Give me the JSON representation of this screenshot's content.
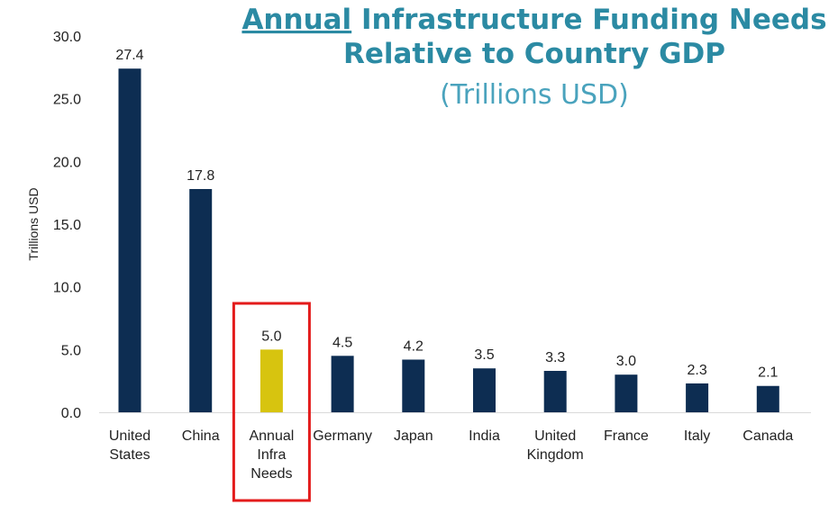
{
  "chart_data": {
    "type": "bar",
    "title": {
      "emphasis": "Annual",
      "line1_rest": " Infrastructure Funding Needs",
      "line2": "Relative to Country GDP",
      "subtitle": "(Trillions USD)"
    },
    "ylabel": "Trillions USD",
    "xlabel": "",
    "ylim": [
      0,
      30
    ],
    "yticks": [
      "0.0",
      "5.0",
      "10.0",
      "15.0",
      "20.0",
      "25.0",
      "30.0"
    ],
    "categories": [
      [
        "United",
        "States"
      ],
      [
        "China"
      ],
      [
        "Annual",
        "Infra",
        "Needs"
      ],
      [
        "Germany"
      ],
      [
        "Japan"
      ],
      [
        "India"
      ],
      [
        "United",
        "Kingdom"
      ],
      [
        "France"
      ],
      [
        "Italy"
      ],
      [
        "Canada"
      ]
    ],
    "values": [
      27.4,
      17.8,
      5.0,
      4.5,
      4.2,
      3.5,
      3.3,
      3.0,
      2.3,
      2.1
    ],
    "value_labels": [
      "27.4",
      "17.8",
      "5.0",
      "4.5",
      "4.2",
      "3.5",
      "3.3",
      "3.0",
      "2.3",
      "2.1"
    ],
    "bar_color": "#0d2d52",
    "highlight_index": 2,
    "highlight_color": "#d7c40f",
    "highlight_box_color": "#e31b1b",
    "grid": false
  }
}
